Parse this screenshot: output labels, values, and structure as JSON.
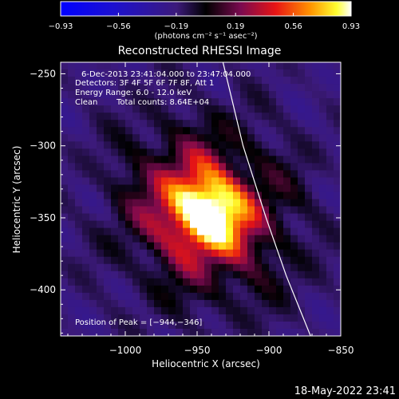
{
  "chart_data": {
    "type": "heatmap",
    "title": "Reconstructed RHESSI Image",
    "xlabel": "Heliocentric X (arcsec)",
    "ylabel": "Heliocentric Y (arcsec)",
    "xlim": [
      -1045,
      -850
    ],
    "ylim": [
      -432,
      -242
    ],
    "x_ticks": [
      -1000,
      -950,
      -900,
      -850
    ],
    "y_ticks": [
      -250,
      -300,
      -350,
      -400
    ],
    "x_tick_labels": [
      "−1000",
      "−950",
      "−900",
      "−850"
    ],
    "y_tick_labels": [
      "−250",
      "−300",
      "−350",
      "−400"
    ],
    "colorbar": {
      "min": -0.93,
      "max": 0.93,
      "ticks": [
        -0.93,
        -0.56,
        -0.19,
        0.19,
        0.56,
        0.93
      ],
      "tick_labels": [
        "−0.93",
        "−0.56",
        "−0.19",
        "0.19",
        "0.56",
        "0.93"
      ],
      "unit_label": "(photons cm⁻² s⁻¹ asec⁻²)"
    },
    "annotations": {
      "time_range": "6-Dec-2013 23:41:04.000 to 23:47:04.000",
      "detectors": "Detectors: 3F 4F 5F 6F 7F 8F, Att 1",
      "energy": "Energy Range: 6.0 - 12.0 keV",
      "method": "Clean",
      "counts": "Total counts: 8.64E+04",
      "peak": "Position of Peak = [−944,−346]"
    },
    "peak": {
      "x": -944,
      "y": -346,
      "value": 0.93
    },
    "limb_curve": [
      [
        -932,
        -242
      ],
      [
        -918,
        -300
      ],
      [
        -902,
        -350
      ],
      [
        -888,
        -390
      ],
      [
        -871,
        -432
      ]
    ],
    "timestamp": "18-May-2022 23:41"
  }
}
